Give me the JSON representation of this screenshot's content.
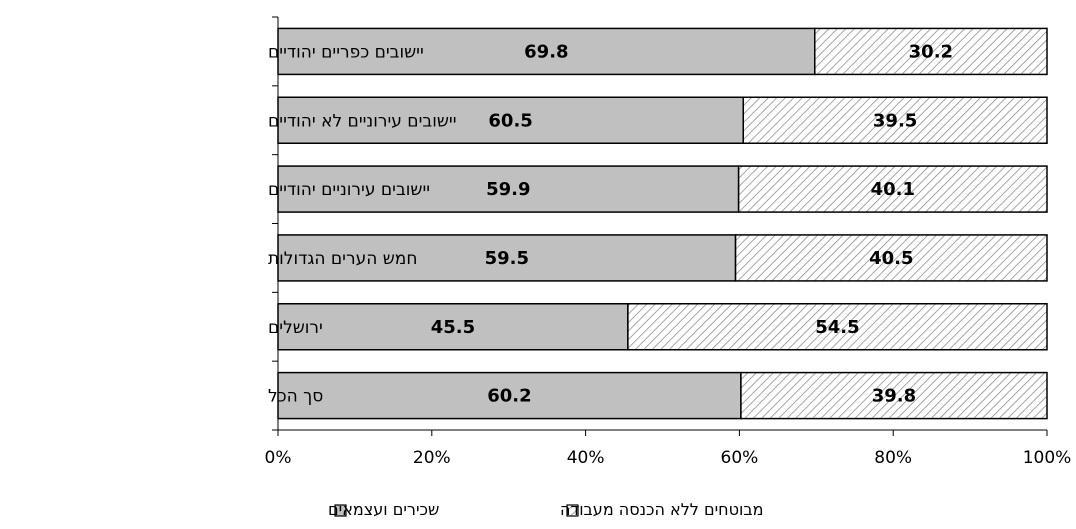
{
  "chart_data": {
    "type": "bar",
    "orientation": "horizontal",
    "stacked": true,
    "percent_stacked": true,
    "categories": [
      "יישובים כפריים יהודיים",
      "יישובים עירוניים לא יהודיים",
      "יישובים עירוניים יהודיים",
      "חמש הערים הגדולות",
      "ירושלים",
      "סך הכל"
    ],
    "series": [
      {
        "name": "שכירים ועצמאים",
        "values": [
          69.8,
          60.5,
          59.9,
          59.5,
          45.5,
          60.2
        ],
        "color": "#c0c0c0",
        "pattern": "solid"
      },
      {
        "name": "מבוטחים ללא הכנסה מעבודה",
        "values": [
          30.2,
          39.5,
          40.1,
          40.5,
          54.5,
          39.8
        ],
        "color": "#ffffff",
        "pattern": "diagonal-hatch"
      }
    ],
    "xlim": [
      0,
      100
    ],
    "x_ticks": [
      "0%",
      "20%",
      "40%",
      "60%",
      "80%",
      "100%"
    ],
    "title": "",
    "xlabel": "",
    "ylabel": "",
    "grid": false,
    "legend_position": "bottom"
  }
}
